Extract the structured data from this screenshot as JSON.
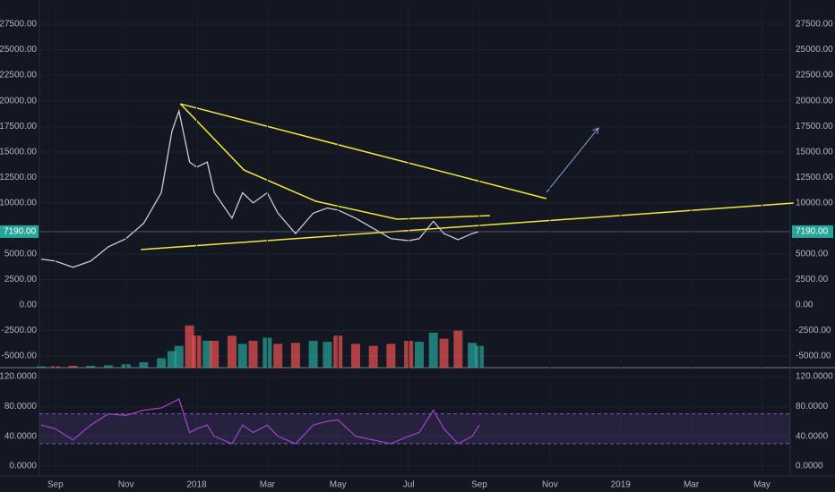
{
  "chart_data": [
    {
      "type": "line",
      "x": [
        -0.4,
        0,
        0.5,
        1,
        1.5,
        2,
        2.5,
        3,
        3.3,
        3.5,
        3.8,
        4,
        4.3,
        4.5,
        5,
        5.3,
        5.6,
        6,
        6.3,
        6.8,
        7.3,
        7.7,
        8,
        8.5,
        9,
        9.5,
        10,
        10.3,
        10.7,
        11,
        11.4,
        11.8,
        12
      ],
      "series": [
        {
          "color": "#c8ccd6",
          "values": [
            4500,
            4300,
            3700,
            4300,
            5700,
            6500,
            8000,
            11000,
            17000,
            19000,
            14000,
            13500,
            14000,
            11000,
            8500,
            11000,
            10000,
            11000,
            9000,
            7000,
            9000,
            9500,
            9300,
            8500,
            7500,
            6500,
            6300,
            6500,
            8200,
            7000,
            6400,
            7000,
            7190
          ]
        }
      ],
      "volume": {
        "up_color": "#26a69a",
        "down_color": "#ef5350",
        "values": [
          -6000,
          -6000,
          -5950,
          -5950,
          -5900,
          -5800,
          -5600,
          -5200,
          -4500,
          -4000,
          -2000,
          -3000,
          -3500,
          -3500,
          -3000,
          -3800,
          -3500,
          -3200,
          -3800,
          -3700,
          -3500,
          -3600,
          -3000,
          -3800,
          -4000,
          -3800,
          -3500,
          -3600,
          -2700,
          -3300,
          -2500,
          -3700,
          -4000
        ]
      },
      "xlim": [
        -0.45,
        20.8
      ],
      "ylim": [
        -6130,
        28990
      ],
      "yticks": [
        {
          "value": 27500,
          "label": "27500.00"
        },
        {
          "value": 25000,
          "label": "25000.00"
        },
        {
          "value": 22500,
          "label": "22500.00"
        },
        {
          "value": 20000,
          "label": "20000.00"
        },
        {
          "value": 17500,
          "label": "17500.00"
        },
        {
          "value": 15000,
          "label": "15000.00"
        },
        {
          "value": 12500,
          "label": "12500.00"
        },
        {
          "value": 10000,
          "label": "10000.00"
        },
        {
          "value": 5000,
          "label": "5000.00"
        },
        {
          "value": 2500,
          "label": "2500.00"
        },
        {
          "value": 0,
          "label": "0.00"
        },
        {
          "value": -2500,
          "label": "-2500.00"
        },
        {
          "value": -5000,
          "label": "-5000.00"
        }
      ],
      "last_price": {
        "value": 7190,
        "label": "7190.00",
        "color": "#26a69a"
      },
      "drawings": [
        {
          "color": "#f5e63c",
          "x": [
            3.54,
            13.9
          ],
          "y": [
            19700,
            10420
          ]
        },
        {
          "color": "#f5e63c",
          "x": [
            2.42,
            20.9
          ],
          "y": [
            5430,
            9980
          ]
        },
        {
          "color": "#f5e63c",
          "x": [
            3.54,
            5.34,
            7.38,
            9.67,
            12.3
          ],
          "y": [
            19700,
            13220,
            10160,
            8410,
            8760
          ]
        },
        {
          "color": "#8fa6d8",
          "x": [
            13.9,
            15.37
          ],
          "y": [
            11030,
            17340
          ],
          "arrow": true
        }
      ]
    },
    {
      "type": "line",
      "x": [
        -0.4,
        0,
        0.5,
        1,
        1.5,
        2,
        2.5,
        3,
        3.3,
        3.5,
        3.8,
        4,
        4.3,
        4.5,
        5,
        5.3,
        5.6,
        6,
        6.3,
        6.8,
        7.3,
        7.7,
        8,
        8.5,
        9,
        9.5,
        10,
        10.3,
        10.7,
        11,
        11.4,
        11.8,
        12
      ],
      "series": [
        {
          "color": "#9c3fc4",
          "values": [
            55,
            50,
            35,
            55,
            70,
            68,
            75,
            78,
            85,
            90,
            45,
            50,
            55,
            40,
            30,
            55,
            45,
            55,
            40,
            30,
            55,
            60,
            62,
            40,
            35,
            30,
            40,
            45,
            75,
            50,
            30,
            40,
            55
          ]
        }
      ],
      "band": [
        30,
        70
      ],
      "xlim": [
        -0.45,
        20.8
      ],
      "ylim": [
        -22.8,
        129.6
      ],
      "yticks": [
        {
          "value": 120,
          "label": "120.0000"
        },
        {
          "value": 80,
          "label": "80.0000"
        },
        {
          "value": 40,
          "label": "40.0000"
        },
        {
          "value": 0,
          "label": "0.0000"
        }
      ],
      "xticks": [
        {
          "value": 0,
          "label": "Sep"
        },
        {
          "value": 2,
          "label": "Nov"
        },
        {
          "value": 4,
          "label": "2018"
        },
        {
          "value": 6,
          "label": "Mar"
        },
        {
          "value": 8,
          "label": "May"
        },
        {
          "value": 10,
          "label": "Jul"
        },
        {
          "value": 12,
          "label": "Sep"
        },
        {
          "value": 14,
          "label": "Nov"
        },
        {
          "value": 16,
          "label": "2019"
        },
        {
          "value": 18,
          "label": "Mar"
        },
        {
          "value": 20,
          "label": "May"
        }
      ]
    }
  ]
}
